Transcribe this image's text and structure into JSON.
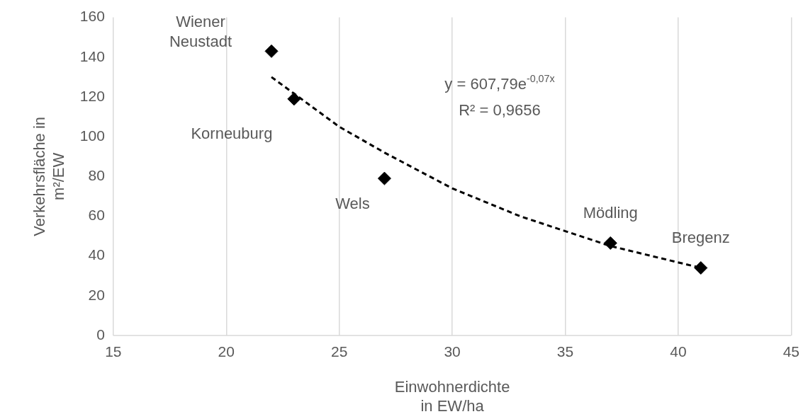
{
  "chart_data": {
    "type": "scatter",
    "xlabel": "Einwohnerdichte in EW/ha",
    "ylabel": "Verkehrsfläche in m²/EW",
    "series": [
      {
        "type": "scatter",
        "color": "#000000",
        "marker": "diamond",
        "x": [
          22,
          23,
          27,
          37,
          41
        ],
        "values": [
          143,
          119,
          79,
          46.5,
          34
        ]
      },
      {
        "type": "line",
        "color": "#000000",
        "line_style": "dashed",
        "marker": "none",
        "x": [
          22,
          25,
          27,
          30,
          33,
          37,
          41
        ],
        "values": [
          130,
          105,
          92,
          74,
          60,
          45,
          34
        ]
      }
    ],
    "xlim": [
      15,
      45
    ],
    "xticks": [
      15,
      20,
      25,
      30,
      35,
      40,
      45
    ],
    "ylim": [
      0,
      160
    ],
    "yticks": [
      0,
      20,
      40,
      60,
      80,
      100,
      120,
      140,
      160
    ],
    "grid": "x",
    "legend": false,
    "annotations": [
      {
        "text": "Wiener Neustadt",
        "x": 22,
        "y": 143
      },
      {
        "text": "Korneuburg",
        "x": 23,
        "y": 119
      },
      {
        "text": "Wels",
        "x": 27,
        "y": 79
      },
      {
        "text": "Mödling",
        "x": 37,
        "y": 46.5
      },
      {
        "text": "Bregenz",
        "x": 41,
        "y": 34
      },
      "y = 607,79e$^{-0,07x}$",
      "R² = 0,9656"
    ]
  }
}
